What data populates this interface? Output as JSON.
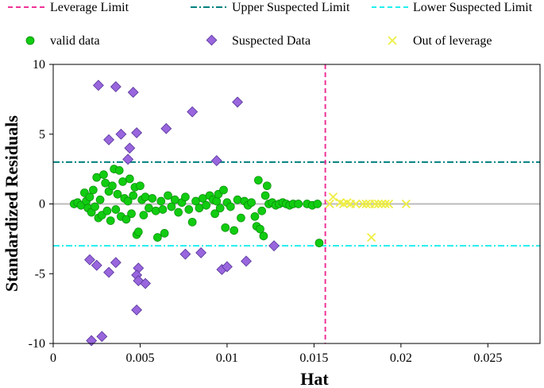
{
  "chart_data": {
    "type": "scatter",
    "title": "",
    "xlabel": "Hat",
    "ylabel": "Standardized Residuals",
    "xlim": [
      0,
      0.028
    ],
    "ylim": [
      -10,
      10
    ],
    "xticks": [
      0,
      0.005,
      0.01,
      0.015,
      0.02,
      0.025
    ],
    "xtick_labels": [
      "0",
      "0.005",
      "0.01",
      "0.015",
      "0.02",
      "0.025"
    ],
    "yticks": [
      10,
      5,
      0,
      -5,
      -10
    ],
    "ytick_labels": [
      "10",
      "5",
      "0",
      "-5",
      "-10"
    ],
    "colors": {
      "valid": "#11cc11",
      "valid_edge": "#0a8a0a",
      "suspected": "#9966dd",
      "suspected_edge": "#553399",
      "out_of_leverage": "#eeee44",
      "leverage_limit": "#ee3399",
      "upper_limit": "#008080",
      "lower_limit": "#22eeee",
      "zero_line": "#bbbbbb"
    },
    "reference_lines": {
      "leverage_limit_x": 0.01565,
      "upper_suspected_y": 3,
      "lower_suspected_y": -3,
      "zero_y": 0
    },
    "legend": {
      "leverage_limit": "Leverage Limit",
      "upper_limit": "Upper Suspected Limit",
      "lower_limit": "Lower Suspected Limit",
      "valid": "valid data",
      "suspected": "Suspected Data",
      "out_of_leverage": "Out of leverage"
    },
    "series": [
      {
        "name": "valid data",
        "points": [
          [
            0.0012,
            0.0
          ],
          [
            0.0014,
            0.1
          ],
          [
            0.0016,
            -0.1
          ],
          [
            0.0018,
            0.8
          ],
          [
            0.0019,
            0.2
          ],
          [
            0.002,
            -0.3
          ],
          [
            0.0021,
            0.5
          ],
          [
            0.0022,
            -0.6
          ],
          [
            0.0023,
            1.0
          ],
          [
            0.0024,
            -0.2
          ],
          [
            0.0025,
            1.9
          ],
          [
            0.0026,
            -1.0
          ],
          [
            0.0027,
            0.3
          ],
          [
            0.0028,
            -0.8
          ],
          [
            0.0029,
            2.1
          ],
          [
            0.003,
            1.5
          ],
          [
            0.0031,
            -0.5
          ],
          [
            0.0032,
            0.9
          ],
          [
            0.0033,
            -1.2
          ],
          [
            0.0034,
            1.3
          ],
          [
            0.0035,
            2.5
          ],
          [
            0.0036,
            -0.4
          ],
          [
            0.0037,
            0.7
          ],
          [
            0.0038,
            2.4
          ],
          [
            0.0039,
            -0.9
          ],
          [
            0.004,
            1.6
          ],
          [
            0.0041,
            0.4
          ],
          [
            0.0042,
            -1.1
          ],
          [
            0.0043,
            0.2
          ],
          [
            0.0044,
            1.8
          ],
          [
            0.0045,
            -0.7
          ],
          [
            0.0046,
            0.6
          ],
          [
            0.0047,
            1.2
          ],
          [
            0.0048,
            -2.2
          ],
          [
            0.0049,
            -2.0
          ],
          [
            0.005,
            1.3
          ],
          [
            0.0051,
            0.3
          ],
          [
            0.0052,
            -0.8
          ],
          [
            0.0053,
            0.5
          ],
          [
            0.0055,
            -0.3
          ],
          [
            0.0057,
            0.4
          ],
          [
            0.0059,
            -0.5
          ],
          [
            0.006,
            -2.4
          ],
          [
            0.0062,
            0.2
          ],
          [
            0.0063,
            -0.4
          ],
          [
            0.0064,
            -2.1
          ],
          [
            0.0066,
            0.6
          ],
          [
            0.0068,
            -0.2
          ],
          [
            0.007,
            0.3
          ],
          [
            0.0072,
            -0.6
          ],
          [
            0.0074,
            0.1
          ],
          [
            0.0076,
            0.5
          ],
          [
            0.0078,
            -0.4
          ],
          [
            0.008,
            -1.3
          ],
          [
            0.0082,
            0.2
          ],
          [
            0.0084,
            -0.3
          ],
          [
            0.0086,
            0.4
          ],
          [
            0.0088,
            -0.1
          ],
          [
            0.009,
            0.6
          ],
          [
            0.0092,
            0.3
          ],
          [
            0.0093,
            -0.7
          ],
          [
            0.0094,
            0.2
          ],
          [
            0.0095,
            0.7
          ],
          [
            0.0096,
            -0.3
          ],
          [
            0.0098,
            1.0
          ],
          [
            0.0099,
            -1.7
          ],
          [
            0.01,
            0.1
          ],
          [
            0.0102,
            -0.2
          ],
          [
            0.0104,
            -1.9
          ],
          [
            0.0106,
            0.3
          ],
          [
            0.0108,
            -1.0
          ],
          [
            0.011,
            0.2
          ],
          [
            0.0112,
            -0.1
          ],
          [
            0.0114,
            0.1
          ],
          [
            0.0116,
            -0.9
          ],
          [
            0.0117,
            -1.6
          ],
          [
            0.0118,
            1.7
          ],
          [
            0.0119,
            -1.8
          ],
          [
            0.012,
            -0.5
          ],
          [
            0.0121,
            -2.3
          ],
          [
            0.0122,
            0.6
          ],
          [
            0.0123,
            1.3
          ],
          [
            0.0124,
            0.0
          ],
          [
            0.0126,
            0.1
          ],
          [
            0.0128,
            -0.1
          ],
          [
            0.013,
            0.0
          ],
          [
            0.0132,
            0.1
          ],
          [
            0.0134,
            0.0
          ],
          [
            0.0136,
            -0.1
          ],
          [
            0.0138,
            0.0
          ],
          [
            0.0141,
            0.0
          ],
          [
            0.0146,
            0.0
          ],
          [
            0.0149,
            -0.1
          ],
          [
            0.0152,
            0.0
          ],
          [
            0.0153,
            -2.8
          ]
        ]
      },
      {
        "name": "Suspected Data",
        "points": [
          [
            0.0026,
            8.5
          ],
          [
            0.0036,
            8.4
          ],
          [
            0.0046,
            8.0
          ],
          [
            0.008,
            6.6
          ],
          [
            0.0106,
            7.3
          ],
          [
            0.0065,
            5.4
          ],
          [
            0.0048,
            5.1
          ],
          [
            0.0039,
            5.0
          ],
          [
            0.0032,
            4.6
          ],
          [
            0.0044,
            4.0
          ],
          [
            0.0043,
            3.2
          ],
          [
            0.0094,
            3.1
          ],
          [
            0.0021,
            -4.0
          ],
          [
            0.0025,
            -4.4
          ],
          [
            0.0032,
            -4.9
          ],
          [
            0.0036,
            -4.2
          ],
          [
            0.0049,
            -4.6
          ],
          [
            0.0048,
            -5.1
          ],
          [
            0.0049,
            -5.5
          ],
          [
            0.0053,
            -5.7
          ],
          [
            0.0076,
            -3.6
          ],
          [
            0.0085,
            -3.5
          ],
          [
            0.0097,
            -4.7
          ],
          [
            0.01,
            -4.5
          ],
          [
            0.0111,
            -4.1
          ],
          [
            0.0127,
            -3.0
          ],
          [
            0.0048,
            -7.6
          ],
          [
            0.0022,
            -9.8
          ],
          [
            0.0028,
            -9.5
          ]
        ]
      },
      {
        "name": "Out of leverage",
        "points": [
          [
            0.0159,
            0.0
          ],
          [
            0.0161,
            0.5
          ],
          [
            0.0165,
            0.1
          ],
          [
            0.0167,
            0.0
          ],
          [
            0.0169,
            0.1
          ],
          [
            0.0171,
            0.0
          ],
          [
            0.0174,
            0.0
          ],
          [
            0.0178,
            0.0
          ],
          [
            0.018,
            0.0
          ],
          [
            0.0182,
            0.0
          ],
          [
            0.0185,
            0.0
          ],
          [
            0.0187,
            0.0
          ],
          [
            0.0189,
            0.0
          ],
          [
            0.0191,
            0.0
          ],
          [
            0.0193,
            0.0
          ],
          [
            0.0203,
            0.0
          ],
          [
            0.0183,
            -2.4
          ]
        ]
      }
    ]
  }
}
